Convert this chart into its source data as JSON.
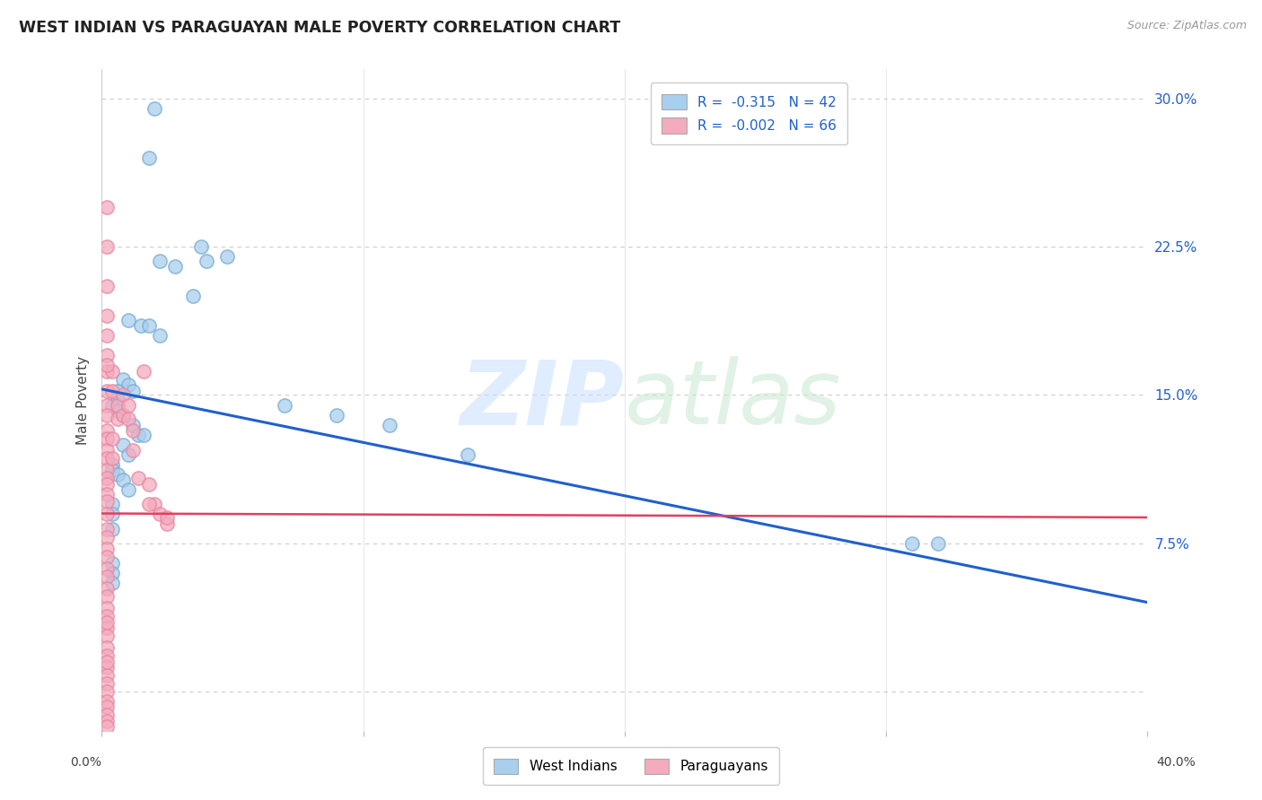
{
  "title": "WEST INDIAN VS PARAGUAYAN MALE POVERTY CORRELATION CHART",
  "source": "Source: ZipAtlas.com",
  "ylabel": "Male Poverty",
  "yticks": [
    0.0,
    0.075,
    0.15,
    0.225,
    0.3
  ],
  "ytick_labels": [
    "",
    "7.5%",
    "15.0%",
    "22.5%",
    "30.0%"
  ],
  "xlim": [
    0.0,
    0.4
  ],
  "ylim": [
    -0.02,
    0.315
  ],
  "legend_r1": "R =  -0.315   N = 42",
  "legend_r2": "R =  -0.002   N = 66",
  "blue_color": "#A8CFED",
  "pink_color": "#F4ABBE",
  "blue_edge_color": "#7AABD4",
  "pink_edge_color": "#E888A0",
  "regression_blue_color": "#2060CC",
  "regression_pink_color": "#E04060",
  "watermark_zip": "ZIP",
  "watermark_atlas": "atlas",
  "west_indian_x": [
    0.02,
    0.018,
    0.048,
    0.038,
    0.022,
    0.028,
    0.035,
    0.04,
    0.01,
    0.015,
    0.018,
    0.022,
    0.008,
    0.01,
    0.012,
    0.006,
    0.006,
    0.004,
    0.006,
    0.008,
    0.012,
    0.014,
    0.016,
    0.008,
    0.01,
    0.004,
    0.004,
    0.006,
    0.008,
    0.01,
    0.07,
    0.09,
    0.11,
    0.14,
    0.004,
    0.004,
    0.004,
    0.004,
    0.004,
    0.31,
    0.32,
    0.004
  ],
  "west_indian_y": [
    0.295,
    0.27,
    0.22,
    0.225,
    0.218,
    0.215,
    0.2,
    0.218,
    0.188,
    0.185,
    0.185,
    0.18,
    0.158,
    0.155,
    0.152,
    0.152,
    0.148,
    0.145,
    0.142,
    0.14,
    0.135,
    0.13,
    0.13,
    0.125,
    0.12,
    0.115,
    0.112,
    0.11,
    0.107,
    0.102,
    0.145,
    0.14,
    0.135,
    0.12,
    0.095,
    0.09,
    0.065,
    0.06,
    0.055,
    0.075,
    0.075,
    0.082
  ],
  "paraguayan_x": [
    0.002,
    0.002,
    0.002,
    0.002,
    0.002,
    0.002,
    0.002,
    0.002,
    0.002,
    0.002,
    0.002,
    0.002,
    0.002,
    0.002,
    0.002,
    0.002,
    0.002,
    0.002,
    0.002,
    0.002,
    0.004,
    0.004,
    0.004,
    0.004,
    0.006,
    0.006,
    0.008,
    0.008,
    0.01,
    0.01,
    0.012,
    0.012,
    0.014,
    0.016,
    0.018,
    0.02,
    0.022,
    0.025,
    0.018,
    0.025,
    0.002,
    0.002,
    0.002,
    0.002,
    0.002,
    0.002,
    0.002,
    0.002,
    0.002,
    0.002,
    0.002,
    0.002,
    0.002,
    0.002,
    0.002,
    0.002,
    0.002,
    0.002,
    0.002,
    0.002,
    0.002,
    0.002,
    0.002,
    0.002,
    0.002,
    0.002
  ],
  "paraguayan_y": [
    0.245,
    0.225,
    0.205,
    0.19,
    0.18,
    0.17,
    0.162,
    0.152,
    0.145,
    0.14,
    0.132,
    0.128,
    0.122,
    0.118,
    0.112,
    0.108,
    0.105,
    0.1,
    0.096,
    0.09,
    0.162,
    0.152,
    0.128,
    0.118,
    0.145,
    0.138,
    0.15,
    0.14,
    0.145,
    0.138,
    0.132,
    0.122,
    0.108,
    0.162,
    0.105,
    0.095,
    0.09,
    0.085,
    0.095,
    0.088,
    0.082,
    0.078,
    0.072,
    0.068,
    0.062,
    0.058,
    0.052,
    0.048,
    0.042,
    0.038,
    0.032,
    0.028,
    0.022,
    0.018,
    0.012,
    0.008,
    0.004,
    0.0,
    -0.005,
    -0.008,
    -0.012,
    -0.015,
    -0.018,
    0.165,
    0.035,
    0.015
  ],
  "blue_line_x": [
    0.0,
    0.4
  ],
  "blue_line_y": [
    0.153,
    0.045
  ],
  "pink_line_x": [
    0.0,
    0.4
  ],
  "pink_line_y": [
    0.09,
    0.088
  ]
}
